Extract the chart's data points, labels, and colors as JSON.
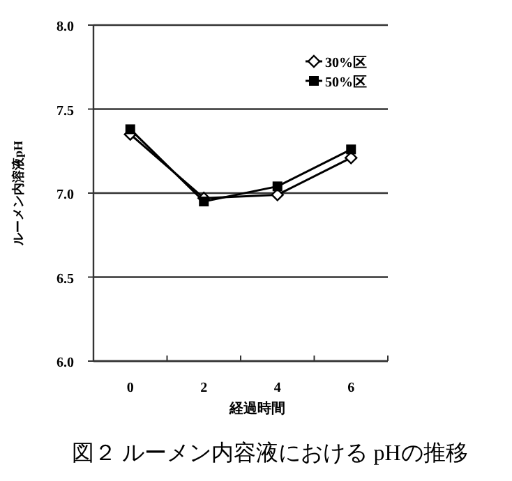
{
  "chart_data": {
    "type": "line",
    "title": "図２ ルーメン内容液における pHの推移",
    "xlabel": "経過時間",
    "ylabel": "ルーメン内溶液pH",
    "categories": [
      "0",
      "2",
      "4",
      "6"
    ],
    "series": [
      {
        "name": "30%区",
        "color": "#000000",
        "marker": "diamond",
        "values": [
          7.35,
          6.97,
          6.99,
          7.21
        ]
      },
      {
        "name": "50%区",
        "color": "#000000",
        "marker": "square",
        "values": [
          7.38,
          6.95,
          7.04,
          7.26
        ]
      }
    ],
    "ylim": [
      6,
      8
    ],
    "yticks": [
      {
        "value": 6,
        "label": "6.0"
      },
      {
        "value": 6.5,
        "label": "6.5"
      },
      {
        "value": 7,
        "label": "7.0"
      },
      {
        "value": 7.5,
        "label": "7.5"
      },
      {
        "value": 8,
        "label": "8.0"
      }
    ],
    "grid": "y",
    "legend": "top right",
    "line_style": "solid"
  }
}
